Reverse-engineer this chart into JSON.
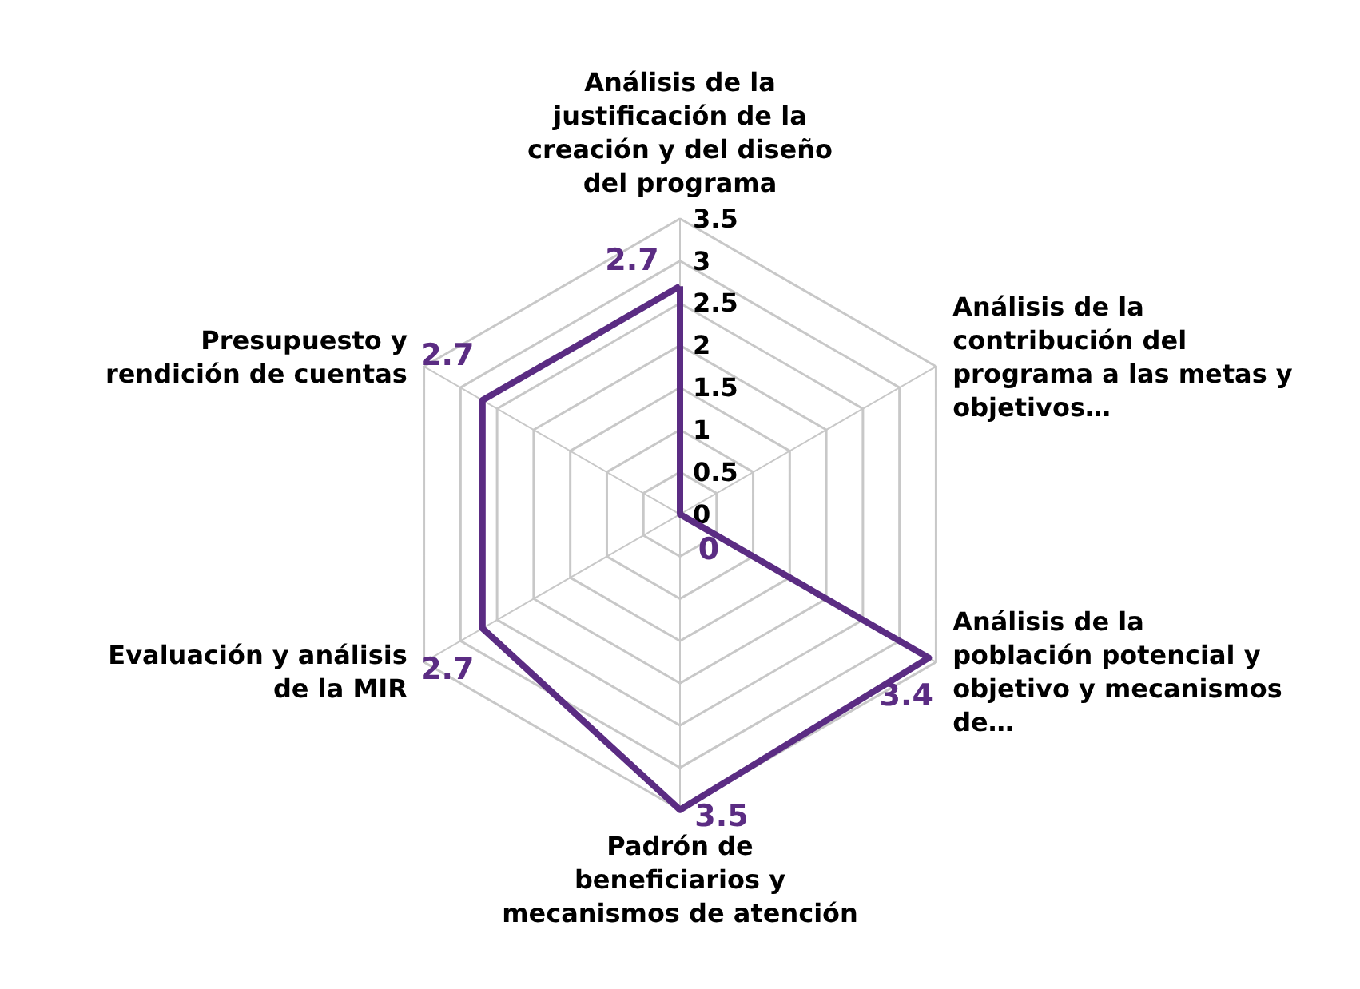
{
  "chart_data": {
    "type": "radar",
    "categories": [
      "Análisis de la justificación de la creación y del diseño del programa",
      "Análisis de la contribución del programa a las metas y objetivos…",
      "Análisis de la población potencial y objetivo y mecanismos de…",
      "Padrón de beneficiarios y mecanismos de atención",
      "Evaluación y análisis de la MIR",
      "Presupuesto y rendición de cuentas"
    ],
    "series": [
      {
        "color": "#5b2c83",
        "values": [
          2.7,
          0,
          3.4,
          3.5,
          2.7,
          2.7
        ]
      }
    ],
    "ylim": [
      0,
      3.5
    ],
    "yticks": [
      0,
      0.5,
      1,
      1.5,
      2,
      2.5,
      3,
      3.5
    ],
    "data_labels": true,
    "grid": true,
    "marker": "none"
  }
}
